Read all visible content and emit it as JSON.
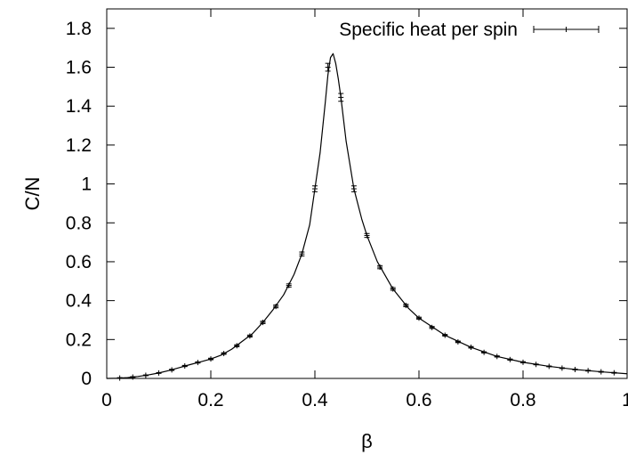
{
  "chart_data": {
    "type": "line",
    "xlabel": "β",
    "ylabel": "C/N",
    "xlim": [
      0,
      1
    ],
    "ylim": [
      0,
      1.9
    ],
    "x_ticks": [
      0,
      0.2,
      0.4,
      0.6,
      0.8,
      1
    ],
    "x_tick_labels": [
      "0",
      "0.2",
      "0.4",
      "0.6",
      "0.8",
      "1"
    ],
    "y_ticks": [
      0,
      0.2,
      0.4,
      0.6,
      0.8,
      1,
      1.2,
      1.4,
      1.6,
      1.8
    ],
    "y_tick_labels": [
      "0",
      "0.2",
      "0.4",
      "0.6",
      "0.8",
      "1",
      "1.2",
      "1.4",
      "1.6",
      "1.8"
    ],
    "grid": false,
    "legend_position": "top-right",
    "colors": {
      "line": "#000000",
      "points": "#000000",
      "frame": "#000000"
    },
    "series": [
      {
        "name": "Specific heat per spin",
        "style": "line+errorbars",
        "points": [
          {
            "x": 0.025,
            "y": 0.002,
            "err": 0.002
          },
          {
            "x": 0.05,
            "y": 0.007,
            "err": 0.002
          },
          {
            "x": 0.075,
            "y": 0.016,
            "err": 0.002
          },
          {
            "x": 0.1,
            "y": 0.028,
            "err": 0.002
          },
          {
            "x": 0.125,
            "y": 0.044,
            "err": 0.003
          },
          {
            "x": 0.15,
            "y": 0.064,
            "err": 0.003
          },
          {
            "x": 0.175,
            "y": 0.082,
            "err": 0.003
          },
          {
            "x": 0.2,
            "y": 0.1,
            "err": 0.004
          },
          {
            "x": 0.225,
            "y": 0.128,
            "err": 0.004
          },
          {
            "x": 0.25,
            "y": 0.168,
            "err": 0.005
          },
          {
            "x": 0.275,
            "y": 0.218,
            "err": 0.005
          },
          {
            "x": 0.3,
            "y": 0.288,
            "err": 0.006
          },
          {
            "x": 0.325,
            "y": 0.37,
            "err": 0.007
          },
          {
            "x": 0.35,
            "y": 0.478,
            "err": 0.008
          },
          {
            "x": 0.375,
            "y": 0.64,
            "err": 0.01
          },
          {
            "x": 0.4,
            "y": 0.975,
            "err": 0.015
          },
          {
            "x": 0.425,
            "y": 1.6,
            "err": 0.02
          },
          {
            "x": 0.45,
            "y": 1.445,
            "err": 0.02
          },
          {
            "x": 0.475,
            "y": 0.975,
            "err": 0.015
          },
          {
            "x": 0.5,
            "y": 0.735,
            "err": 0.01
          },
          {
            "x": 0.525,
            "y": 0.572,
            "err": 0.008
          },
          {
            "x": 0.55,
            "y": 0.46,
            "err": 0.007
          },
          {
            "x": 0.575,
            "y": 0.375,
            "err": 0.006
          },
          {
            "x": 0.6,
            "y": 0.31,
            "err": 0.005
          },
          {
            "x": 0.625,
            "y": 0.262,
            "err": 0.005
          },
          {
            "x": 0.65,
            "y": 0.222,
            "err": 0.004
          },
          {
            "x": 0.675,
            "y": 0.188,
            "err": 0.004
          },
          {
            "x": 0.7,
            "y": 0.16,
            "err": 0.004
          },
          {
            "x": 0.725,
            "y": 0.134,
            "err": 0.003
          },
          {
            "x": 0.75,
            "y": 0.113,
            "err": 0.003
          },
          {
            "x": 0.775,
            "y": 0.097,
            "err": 0.003
          },
          {
            "x": 0.8,
            "y": 0.083,
            "err": 0.003
          },
          {
            "x": 0.825,
            "y": 0.072,
            "err": 0.002
          },
          {
            "x": 0.85,
            "y": 0.062,
            "err": 0.002
          },
          {
            "x": 0.875,
            "y": 0.053,
            "err": 0.002
          },
          {
            "x": 0.9,
            "y": 0.046,
            "err": 0.002
          },
          {
            "x": 0.925,
            "y": 0.04,
            "err": 0.002
          },
          {
            "x": 0.95,
            "y": 0.034,
            "err": 0.002
          },
          {
            "x": 0.975,
            "y": 0.029,
            "err": 0.002
          }
        ],
        "curve": [
          [
            0,
            0
          ],
          [
            0.02,
            0.001
          ],
          [
            0.04,
            0.004
          ],
          [
            0.06,
            0.01
          ],
          [
            0.08,
            0.018
          ],
          [
            0.1,
            0.028
          ],
          [
            0.12,
            0.041
          ],
          [
            0.14,
            0.056
          ],
          [
            0.16,
            0.071
          ],
          [
            0.18,
            0.085
          ],
          [
            0.2,
            0.1
          ],
          [
            0.22,
            0.12
          ],
          [
            0.24,
            0.15
          ],
          [
            0.26,
            0.19
          ],
          [
            0.28,
            0.23
          ],
          [
            0.3,
            0.288
          ],
          [
            0.32,
            0.355
          ],
          [
            0.34,
            0.43
          ],
          [
            0.36,
            0.535
          ],
          [
            0.375,
            0.64
          ],
          [
            0.39,
            0.79
          ],
          [
            0.4,
            0.975
          ],
          [
            0.41,
            1.16
          ],
          [
            0.42,
            1.42
          ],
          [
            0.425,
            1.56
          ],
          [
            0.43,
            1.65
          ],
          [
            0.435,
            1.67
          ],
          [
            0.44,
            1.62
          ],
          [
            0.445,
            1.54
          ],
          [
            0.45,
            1.445
          ],
          [
            0.46,
            1.22
          ],
          [
            0.475,
            0.975
          ],
          [
            0.49,
            0.82
          ],
          [
            0.5,
            0.735
          ],
          [
            0.52,
            0.6
          ],
          [
            0.55,
            0.46
          ],
          [
            0.58,
            0.36
          ],
          [
            0.6,
            0.31
          ],
          [
            0.65,
            0.222
          ],
          [
            0.7,
            0.16
          ],
          [
            0.75,
            0.113
          ],
          [
            0.8,
            0.083
          ],
          [
            0.85,
            0.062
          ],
          [
            0.9,
            0.046
          ],
          [
            0.95,
            0.034
          ],
          [
            1.0,
            0.024
          ]
        ]
      }
    ]
  }
}
